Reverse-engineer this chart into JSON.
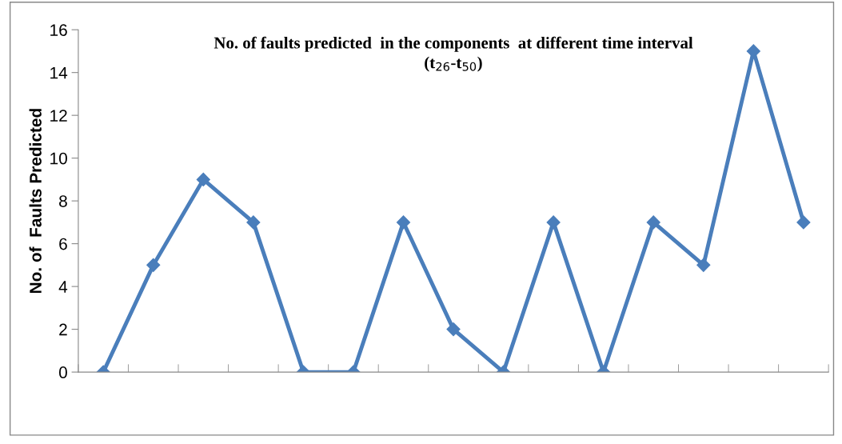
{
  "chart_data": {
    "type": "line",
    "title": "No. of faults predicted  in the components  at different time interval\n(t$_{26}$-t$_{50}$)",
    "ylabel": "No. of  Faults Predicted",
    "categories": [
      null,
      null,
      null,
      null,
      null,
      null,
      null,
      null,
      null,
      null,
      null,
      null,
      null,
      null,
      null
    ],
    "series": [
      {
        "color": "#4a7ebb",
        "values": [
          0,
          5,
          9,
          7,
          0,
          0,
          7,
          2,
          0,
          7,
          0,
          7,
          5,
          15,
          7
        ]
      }
    ],
    "ylim": [
      0,
      16
    ],
    "yticks": [
      0,
      2,
      4,
      6,
      8,
      10,
      12,
      14,
      16
    ],
    "grid": false,
    "legend": false,
    "marker": "diamond",
    "line_style": "solid"
  }
}
